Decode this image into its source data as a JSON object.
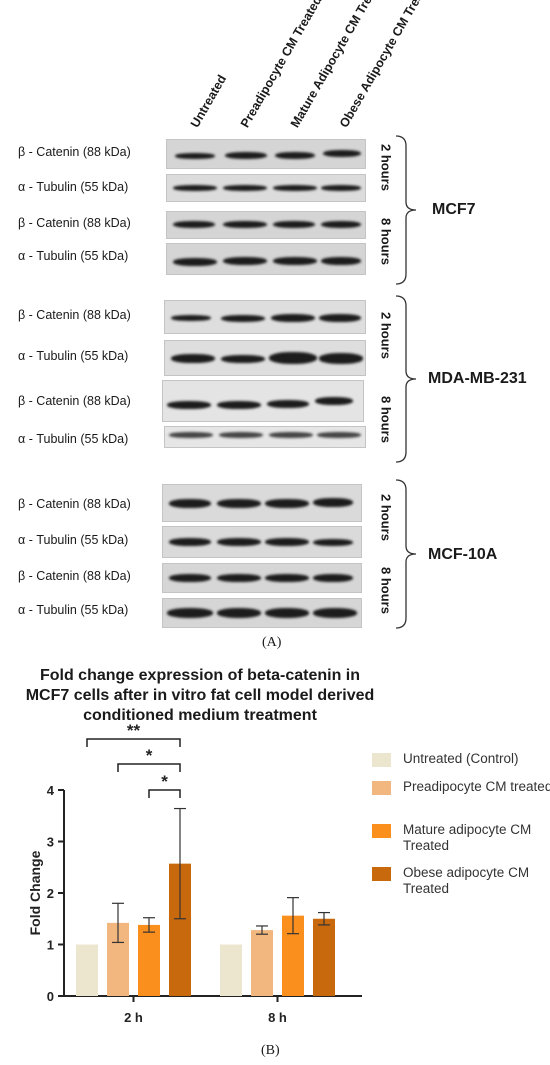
{
  "panel_a": {
    "columns": [
      "Untreated",
      "Preadipocyte CM Treated",
      "Mature Adipocyte CM Treated",
      "Obese Adipocyte CM Treated"
    ],
    "rows": [
      {
        "label": "β - Catenin (88 kDa)"
      },
      {
        "label": "α - Tubulin (55 kDa)"
      },
      {
        "label": "β - Catenin (88 kDa)"
      },
      {
        "label": "α - Tubulin (55 kDa)"
      },
      {
        "label": "β - Catenin (88 kDa)"
      },
      {
        "label": "α - Tubulin (55 kDa)"
      },
      {
        "label": "β - Catenin (88 kDa)"
      },
      {
        "label": "α - Tubulin (55 kDa)"
      },
      {
        "label": "β - Catenin (88 kDa)"
      },
      {
        "label": "α - Tubulin (55 kDa)"
      },
      {
        "label": "β - Catenin (88 kDa)"
      },
      {
        "label": "α - Tubulin (55 kDa)"
      }
    ],
    "time_labels": [
      "2 hours",
      "8 hours",
      "2 hours",
      "8 hours",
      "2 hours",
      "8 hours"
    ],
    "cell_lines": [
      "MCF7",
      "MDA-MB-231",
      "MCF-10A"
    ],
    "panel_label": "(A)"
  },
  "panel_b": {
    "panel_label": "(B)",
    "legend": [
      {
        "label": "Untreated (Control)",
        "color": "#ede6cf"
      },
      {
        "label": "Preadipocyte CM treated",
        "color": "#f2b67f"
      },
      {
        "label": "Mature adipocyte CM Treated",
        "color": "#fb8f1d"
      },
      {
        "label": "Obese adipocyte CM Treated",
        "color": "#c8690e"
      }
    ]
  },
  "chart_data": {
    "type": "bar",
    "title": "Fold change expression of beta-catenin in MCF7 cells after in vitro fat cell model derived conditioned medium treatment",
    "xlabel": "",
    "ylabel": "Fold Change",
    "categories": [
      "2 h",
      "8 h"
    ],
    "ylim": [
      0,
      4
    ],
    "yticks": [
      "0",
      "1",
      "2",
      "3",
      "4"
    ],
    "series": [
      {
        "name": "Untreated (Control)",
        "values": [
          1.0,
          1.0
        ],
        "errors": [
          0,
          0
        ],
        "color": "#ede6cf"
      },
      {
        "name": "Preadipocyte CM treated",
        "values": [
          1.42,
          1.28
        ],
        "errors": [
          0.38,
          0.08
        ],
        "color": "#f2b67f"
      },
      {
        "name": "Mature adipocyte CM Treated",
        "values": [
          1.38,
          1.56
        ],
        "errors": [
          0.14,
          0.35
        ],
        "color": "#fb8f1d"
      },
      {
        "name": "Obese adipocyte CM Treated",
        "values": [
          2.57,
          1.5
        ],
        "errors": [
          1.07,
          0.12
        ],
        "color": "#c8690e"
      }
    ],
    "significance": [
      {
        "from": 0,
        "to": 3,
        "label": "**"
      },
      {
        "from": 1,
        "to": 3,
        "label": "*"
      },
      {
        "from": 2,
        "to": 3,
        "label": "*"
      }
    ],
    "grid": false,
    "legend_position": "right"
  }
}
